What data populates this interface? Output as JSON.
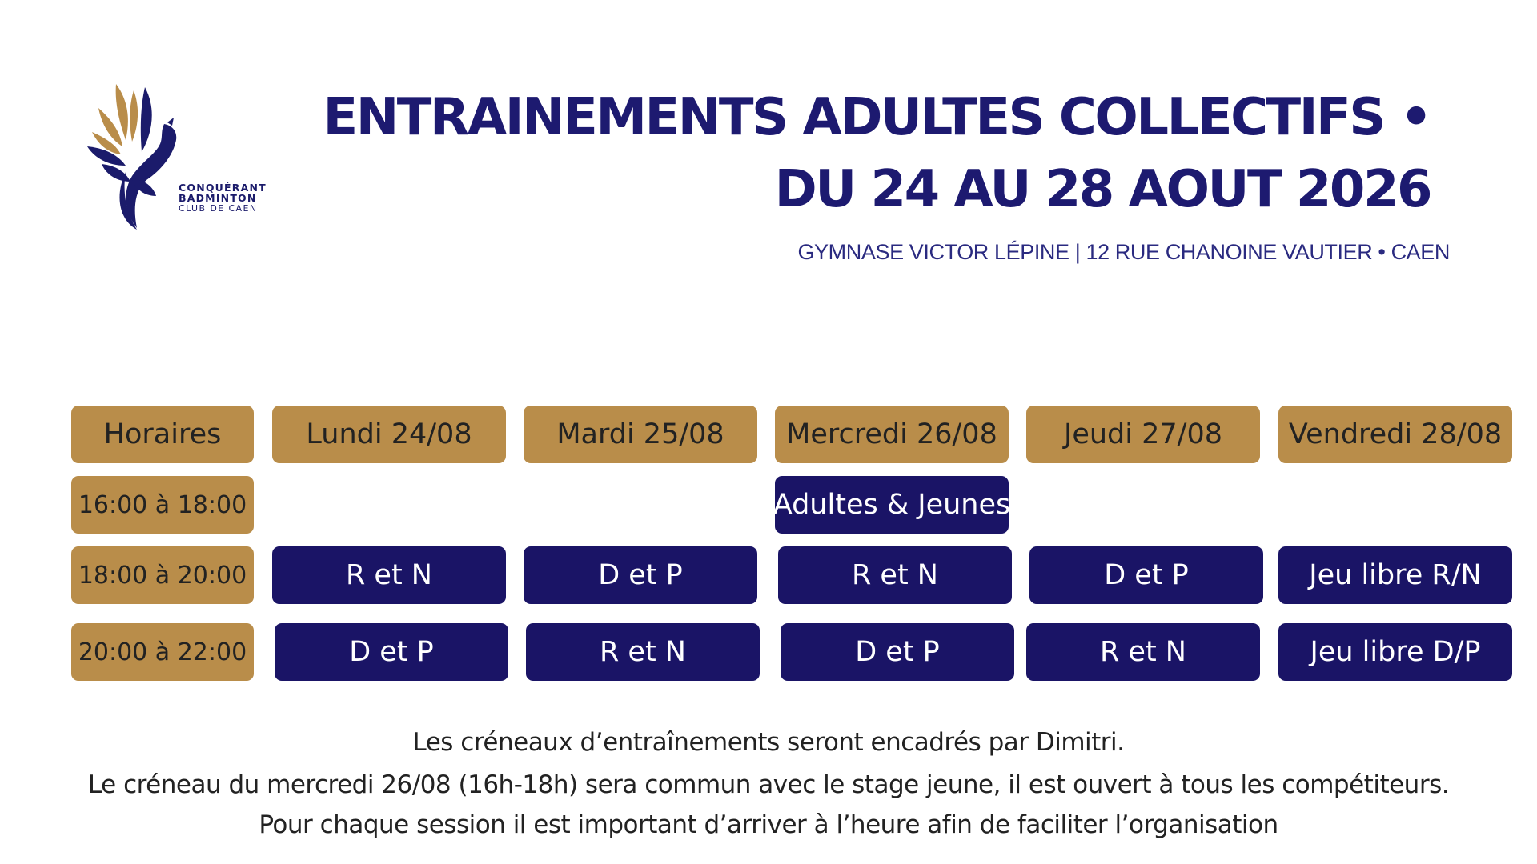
{
  "logo": {
    "icon": "phoenix-icon",
    "text_lines": [
      "CONQUÉRANT",
      "BADMINTON",
      "CLUB DE CAEN"
    ]
  },
  "title": {
    "line1": "ENTRAINEMENTS ADULTES COLLECTIFS •",
    "line2": "DU 24 AU 28 AOUT 2026"
  },
  "subtitle": "GYMNASE VICTOR LÉPINE | 12 RUE CHANOINE VAUTIER • CAEN",
  "colors": {
    "gold": "#b98d4a",
    "navy": "#1a1466",
    "title": "#1d1a70"
  },
  "schedule": {
    "headers": [
      "Horaires",
      "Lundi 24/08",
      "Mardi 25/08",
      "Mercredi 26/08",
      "Jeudi 27/08",
      "Vendredi 28/08"
    ],
    "rows": [
      {
        "time": "16:00 à 18:00",
        "cells": [
          "",
          "",
          "Adultes & Jeunes",
          "",
          ""
        ]
      },
      {
        "time": "18:00 à 20:00",
        "cells": [
          "R et N",
          "D et P",
          "R et N",
          "D et P",
          "Jeu libre R/N"
        ]
      },
      {
        "time": "20:00 à 22:00",
        "cells": [
          "D et P",
          "R et N",
          "D et P",
          "R et N",
          "Jeu libre D/P"
        ]
      }
    ]
  },
  "notes": [
    "Les créneaux d’entraînements seront encadrés par Dimitri.",
    "Le créneau du mercredi 26/08 (16h-18h) sera commun avec le stage jeune, il est ouvert à tous les compétiteurs.",
    "Pour chaque session il est important d’arriver à l’heure afin de faciliter l’organisation"
  ]
}
